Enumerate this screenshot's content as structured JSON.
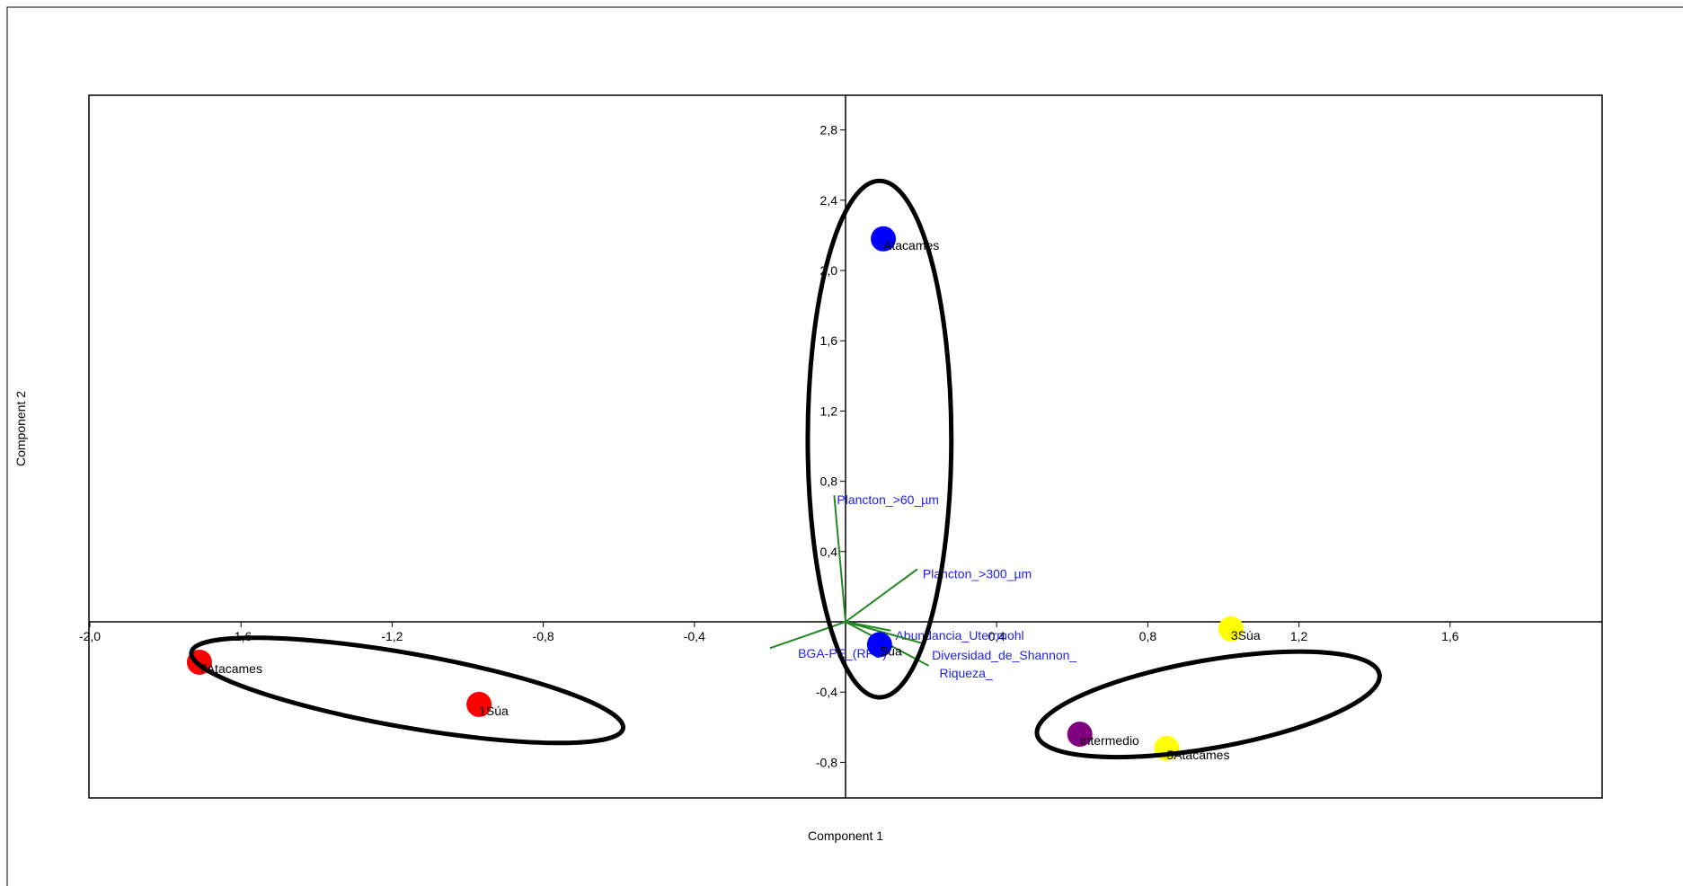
{
  "chart_data": {
    "type": "scatter",
    "subtype": "pca-biplot",
    "title": "",
    "xlabel": "Component 1",
    "ylabel": "Component 2",
    "xlim": [
      -2.0,
      2.0
    ],
    "ylim": [
      -0.85,
      2.98
    ],
    "x_ticks": [
      "-2,0",
      "-1,6",
      "-1,2",
      "-0,8",
      "-0,4",
      "0,4",
      "0,8",
      "1,2",
      "1,6"
    ],
    "x_tick_values": [
      -2.0,
      -1.6,
      -1.2,
      -0.8,
      -0.4,
      0.4,
      0.8,
      1.2,
      1.6
    ],
    "y_ticks": [
      "-0,8",
      "-0,4",
      "0,4",
      "0,8",
      "1,2",
      "1,6",
      "2,0",
      "2,4",
      "2,8"
    ],
    "y_tick_values": [
      -0.8,
      -0.4,
      0.4,
      0.8,
      1.2,
      1.6,
      2.0,
      2.4,
      2.8
    ],
    "grid": false,
    "points": [
      {
        "label": "Atacames",
        "x": 0.1,
        "y": 2.18,
        "color": "#0000ff"
      },
      {
        "label": "Súa",
        "x": 0.09,
        "y": -0.13,
        "color": "#0000ff"
      },
      {
        "label": "7Atacames",
        "x": -1.71,
        "y": -0.23,
        "color": "#ff0000"
      },
      {
        "label": "1Súa",
        "x": -0.97,
        "y": -0.47,
        "color": "#ff0000"
      },
      {
        "label": "3Súa",
        "x": 1.02,
        "y": -0.04,
        "color": "#ffff00"
      },
      {
        "label": "Intermedio",
        "x": 0.62,
        "y": -0.64,
        "color": "#800080"
      },
      {
        "label": "5Atacames",
        "x": 0.85,
        "y": -0.72,
        "color": "#ffff00"
      }
    ],
    "loadings": [
      {
        "label": "Plancton_>60_µm",
        "x": -0.03,
        "y": 0.72
      },
      {
        "label": "Plancton_>300_µm",
        "x": 0.19,
        "y": 0.3
      },
      {
        "label": "Abundancia_Uterrmohl",
        "x": 0.12,
        "y": -0.05
      },
      {
        "label": "BGA-PE_(RFU)",
        "x": -0.2,
        "y": -0.15
      },
      {
        "label": "Diversidad_de_Shannon_",
        "x": 0.2,
        "y": -0.12
      },
      {
        "label": "Riqueza_",
        "x": 0.22,
        "y": -0.25
      }
    ],
    "groups": [
      {
        "cx": 0.09,
        "cy": 1.04,
        "rx": 0.19,
        "ry": 1.47,
        "rotation": 0
      },
      {
        "cx": -1.16,
        "cy": -0.39,
        "rx": 0.58,
        "ry": 0.21,
        "rotation": 10
      },
      {
        "cx": 0.96,
        "cy": -0.47,
        "rx": 0.46,
        "ry": 0.25,
        "rotation": -10
      }
    ],
    "colors": {
      "loading_line": "#228822",
      "loading_text": "#2222ee",
      "ellipse": "#000000"
    }
  }
}
